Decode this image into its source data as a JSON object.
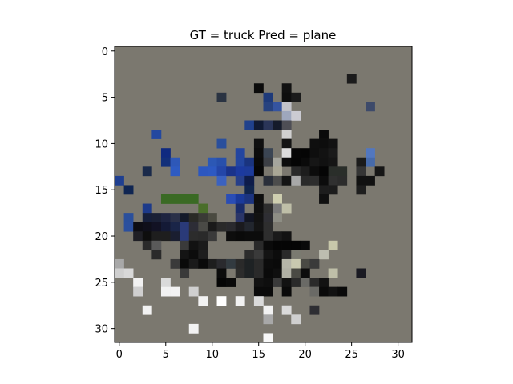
{
  "chart_data": {
    "type": "heatmap",
    "title": "GT = truck Pred = plane",
    "grid": false,
    "x_range": [
      -0.5,
      31.5
    ],
    "y_range": [
      -0.5,
      31.5
    ],
    "y_inverted": true,
    "x_ticks": [
      0,
      5,
      10,
      15,
      20,
      25,
      30
    ],
    "y_ticks": [
      0,
      5,
      10,
      15,
      20,
      25,
      30
    ],
    "background_color": "#7b786f",
    "pixels": [
      [
        25,
        3,
        "#1b1b1b"
      ],
      [
        15,
        4,
        "#0b0b0b"
      ],
      [
        18,
        4,
        "#111111"
      ],
      [
        11,
        5,
        "#2a3342"
      ],
      [
        16,
        5,
        "#1e3a7a"
      ],
      [
        18,
        5,
        "#0e0e0e"
      ],
      [
        19,
        5,
        "#1b1b1b"
      ],
      [
        16,
        6,
        "#27427f"
      ],
      [
        17,
        6,
        "#3554a0"
      ],
      [
        18,
        6,
        "#c3c3c9"
      ],
      [
        27,
        6,
        "#3d4a6a"
      ],
      [
        18,
        7,
        "#9ea7bd"
      ],
      [
        19,
        7,
        "#cbcbd2"
      ],
      [
        14,
        8,
        "#20418c"
      ],
      [
        15,
        8,
        "#101a33"
      ],
      [
        16,
        8,
        "#2a3558"
      ],
      [
        17,
        8,
        "#151b2b"
      ],
      [
        18,
        8,
        "#4e4e55"
      ],
      [
        4,
        9,
        "#2348a0"
      ],
      [
        18,
        9,
        "#d0d0d0"
      ],
      [
        22,
        9,
        "#0a0a0a"
      ],
      [
        11,
        10,
        "#2a4f9c"
      ],
      [
        15,
        10,
        "#101010"
      ],
      [
        18,
        10,
        "#141414"
      ],
      [
        21,
        10,
        "#0f0f0f"
      ],
      [
        22,
        10,
        "#0d0d0d"
      ],
      [
        23,
        10,
        "#121212"
      ],
      [
        5,
        11,
        "#0f2a80"
      ],
      [
        13,
        11,
        "#2345a0"
      ],
      [
        15,
        11,
        "#0c0c0c"
      ],
      [
        16,
        11,
        "#3b4553"
      ],
      [
        18,
        11,
        "#dcdcdc"
      ],
      [
        19,
        11,
        "#060606"
      ],
      [
        20,
        11,
        "#050505"
      ],
      [
        21,
        11,
        "#0e0e0e"
      ],
      [
        22,
        11,
        "#121212"
      ],
      [
        23,
        11,
        "#1a1a1a"
      ],
      [
        27,
        11,
        "#5277bf"
      ],
      [
        5,
        12,
        "#13307a"
      ],
      [
        6,
        12,
        "#2e58b8"
      ],
      [
        10,
        12,
        "#2c58b5"
      ],
      [
        11,
        12,
        "#2850ac"
      ],
      [
        13,
        12,
        "#2346a0"
      ],
      [
        14,
        12,
        "#1a347f"
      ],
      [
        15,
        12,
        "#090909"
      ],
      [
        16,
        12,
        "#3c3f45"
      ],
      [
        17,
        12,
        "#a5a59d"
      ],
      [
        18,
        12,
        "#0c0c0c"
      ],
      [
        19,
        12,
        "#050505"
      ],
      [
        20,
        12,
        "#0a0a0a"
      ],
      [
        21,
        12,
        "#161616"
      ],
      [
        22,
        12,
        "#111111"
      ],
      [
        23,
        12,
        "#151515"
      ],
      [
        26,
        12,
        "#1b1b1b"
      ],
      [
        27,
        12,
        "#466aaa"
      ],
      [
        3,
        13,
        "#1a2a4a"
      ],
      [
        6,
        13,
        "#2e5bc2"
      ],
      [
        9,
        13,
        "#2c57c0"
      ],
      [
        10,
        13,
        "#2d59c2"
      ],
      [
        11,
        13,
        "#2446a8"
      ],
      [
        12,
        13,
        "#1a338a"
      ],
      [
        13,
        13,
        "#1c3aa0"
      ],
      [
        14,
        13,
        "#1d3b9a"
      ],
      [
        15,
        13,
        "#060606"
      ],
      [
        17,
        13,
        "#aaa796"
      ],
      [
        19,
        13,
        "#2a2a2a"
      ],
      [
        20,
        13,
        "#1d1d1d"
      ],
      [
        21,
        13,
        "#0c0c0c"
      ],
      [
        22,
        13,
        "#050505"
      ],
      [
        23,
        13,
        "#2a2e2a"
      ],
      [
        24,
        13,
        "#2a2e2a"
      ],
      [
        26,
        13,
        "#353535"
      ],
      [
        28,
        13,
        "#161616"
      ],
      [
        0,
        14,
        "#1f3f90"
      ],
      [
        11,
        14,
        "#3b62c0"
      ],
      [
        13,
        14,
        "#263f8a"
      ],
      [
        14,
        14,
        "#0e1c4a"
      ],
      [
        16,
        14,
        "#2a2f3a"
      ],
      [
        17,
        14,
        "#4c4c4c"
      ],
      [
        18,
        14,
        "#141414"
      ],
      [
        19,
        14,
        "#a8a8a8"
      ],
      [
        20,
        14,
        "#2a2a2a"
      ],
      [
        21,
        14,
        "#2d2d2d"
      ],
      [
        22,
        14,
        "#0c0c0c"
      ],
      [
        23,
        14,
        "#303030"
      ],
      [
        24,
        14,
        "#2c2c2c"
      ],
      [
        26,
        14,
        "#111111"
      ],
      [
        27,
        14,
        "#111111"
      ],
      [
        1,
        15,
        "#0f2552"
      ],
      [
        14,
        15,
        "#10254e"
      ],
      [
        22,
        15,
        "#1d1d1d"
      ],
      [
        23,
        15,
        "#1c1c1c"
      ],
      [
        26,
        15,
        "#1e1e1e"
      ],
      [
        5,
        16,
        "#3a6a24"
      ],
      [
        6,
        16,
        "#3a6a24"
      ],
      [
        7,
        16,
        "#3a6a24"
      ],
      [
        8,
        16,
        "#3a6a24"
      ],
      [
        12,
        16,
        "#2a4db5"
      ],
      [
        13,
        16,
        "#1b3a9a"
      ],
      [
        14,
        16,
        "#1c347f"
      ],
      [
        15,
        16,
        "#0e0e0e"
      ],
      [
        17,
        16,
        "#cfcfb0"
      ],
      [
        22,
        16,
        "#101010"
      ],
      [
        3,
        17,
        "#1d3a8a"
      ],
      [
        9,
        17,
        "#4a6e2a"
      ],
      [
        13,
        17,
        "#1a2c6a"
      ],
      [
        15,
        17,
        "#0f0f0f"
      ],
      [
        16,
        17,
        "#2e2e2e"
      ],
      [
        17,
        17,
        "#7a7a7a"
      ],
      [
        18,
        17,
        "#bfbfa8"
      ],
      [
        1,
        18,
        "#2a4f9c"
      ],
      [
        3,
        18,
        "#161f3a"
      ],
      [
        4,
        18,
        "#1a2035"
      ],
      [
        5,
        18,
        "#1e2440"
      ],
      [
        6,
        18,
        "#2a3048"
      ],
      [
        7,
        18,
        "#141a2a"
      ],
      [
        8,
        18,
        "#2a2a26"
      ],
      [
        9,
        18,
        "#3a3a36"
      ],
      [
        10,
        18,
        "#4a4a40"
      ],
      [
        13,
        18,
        "#2a3568"
      ],
      [
        14,
        18,
        "#121522"
      ],
      [
        15,
        18,
        "#121212"
      ],
      [
        16,
        18,
        "#2e2e33"
      ],
      [
        17,
        18,
        "#8e8e85"
      ],
      [
        1,
        19,
        "#2b4f9e"
      ],
      [
        2,
        19,
        "#0d0d14"
      ],
      [
        3,
        19,
        "#0f0f1a"
      ],
      [
        4,
        19,
        "#121224"
      ],
      [
        5,
        19,
        "#141a36"
      ],
      [
        6,
        19,
        "#1a2548"
      ],
      [
        7,
        19,
        "#2a3a78"
      ],
      [
        8,
        19,
        "#2d2d36"
      ],
      [
        9,
        19,
        "#4a4a46"
      ],
      [
        10,
        19,
        "#1a1a1a"
      ],
      [
        11,
        19,
        "#2a2a2a"
      ],
      [
        12,
        19,
        "#2a2a2e"
      ],
      [
        13,
        19,
        "#1a1a1e"
      ],
      [
        14,
        19,
        "#22262e"
      ],
      [
        15,
        19,
        "#141414"
      ],
      [
        16,
        19,
        "#2e2e2e"
      ],
      [
        2,
        20,
        "#1f1f25"
      ],
      [
        3,
        20,
        "#0e0e0e"
      ],
      [
        4,
        20,
        "#1e1e1e"
      ],
      [
        5,
        20,
        "#1e1e1e"
      ],
      [
        6,
        20,
        "#1a1e30"
      ],
      [
        7,
        20,
        "#2a3a78"
      ],
      [
        8,
        20,
        "#2c2c2c"
      ],
      [
        9,
        20,
        "#2a2a2a"
      ],
      [
        10,
        20,
        "#3a3a3a"
      ],
      [
        12,
        20,
        "#0d0d0d"
      ],
      [
        13,
        20,
        "#0a0a0a"
      ],
      [
        14,
        20,
        "#0c0c0c"
      ],
      [
        15,
        20,
        "#0c0c0c"
      ],
      [
        16,
        20,
        "#2e2e2e"
      ],
      [
        17,
        20,
        "#1a1a1a"
      ],
      [
        18,
        20,
        "#121212"
      ],
      [
        3,
        21,
        "#2a2a2a"
      ],
      [
        4,
        21,
        "#5a5a5a"
      ],
      [
        7,
        21,
        "#3a3a3a"
      ],
      [
        8,
        21,
        "#121212"
      ],
      [
        9,
        21,
        "#1a1a1a"
      ],
      [
        15,
        21,
        "#2a2a2a"
      ],
      [
        16,
        21,
        "#0a0a0a"
      ],
      [
        17,
        21,
        "#050505"
      ],
      [
        18,
        21,
        "#050505"
      ],
      [
        19,
        21,
        "#050505"
      ],
      [
        20,
        21,
        "#0a0a0a"
      ],
      [
        23,
        21,
        "#c8c8aa"
      ],
      [
        4,
        22,
        "#2a2a2a"
      ],
      [
        7,
        22,
        "#141414"
      ],
      [
        8,
        22,
        "#0c0c0c"
      ],
      [
        9,
        22,
        "#1e1e1e"
      ],
      [
        14,
        22,
        "#2c2c2c"
      ],
      [
        15,
        22,
        "#3a3a3a"
      ],
      [
        16,
        22,
        "#141414"
      ],
      [
        17,
        22,
        "#0c0c0c"
      ],
      [
        18,
        22,
        "#2a2a2a"
      ],
      [
        19,
        22,
        "#7a7a70"
      ],
      [
        22,
        22,
        "#bdbdb0"
      ],
      [
        0,
        23,
        "#a8a8a8"
      ],
      [
        6,
        23,
        "#3a3a3a"
      ],
      [
        7,
        23,
        "#0a0a0a"
      ],
      [
        8,
        23,
        "#1a1a1a"
      ],
      [
        9,
        23,
        "#0a0a0a"
      ],
      [
        10,
        23,
        "#1e1e1e"
      ],
      [
        11,
        23,
        "#2a2a2e"
      ],
      [
        12,
        23,
        "#323a40"
      ],
      [
        13,
        23,
        "#2a2a2a"
      ],
      [
        14,
        23,
        "#1e2224"
      ],
      [
        15,
        23,
        "#2a2a2a"
      ],
      [
        16,
        23,
        "#0c0c0c"
      ],
      [
        17,
        23,
        "#0a0a0a"
      ],
      [
        18,
        23,
        "#b5b5a8"
      ],
      [
        19,
        23,
        "#c9c9b0"
      ],
      [
        20,
        23,
        "#4a4a44"
      ],
      [
        21,
        23,
        "#3a3a3a"
      ],
      [
        0,
        24,
        "#cfcfcf"
      ],
      [
        1,
        24,
        "#d8d8d8"
      ],
      [
        7,
        24,
        "#3a3a3a"
      ],
      [
        11,
        24,
        "#0c0c0c"
      ],
      [
        13,
        24,
        "#2c2c2c"
      ],
      [
        14,
        24,
        "#1e2224"
      ],
      [
        15,
        24,
        "#2a2a2a"
      ],
      [
        16,
        24,
        "#0a0a0a"
      ],
      [
        17,
        24,
        "#0f0f0f"
      ],
      [
        18,
        24,
        "#b0b0a4"
      ],
      [
        19,
        24,
        "#4a4a44"
      ],
      [
        20,
        24,
        "#0c0c0c"
      ],
      [
        23,
        24,
        "#bfbfa8"
      ],
      [
        26,
        24,
        "#1a1a22"
      ],
      [
        2,
        25,
        "#f2f2f2"
      ],
      [
        5,
        25,
        "#dadada"
      ],
      [
        11,
        25,
        "#050505"
      ],
      [
        12,
        25,
        "#090909"
      ],
      [
        15,
        25,
        "#121212"
      ],
      [
        16,
        25,
        "#0e0e0e"
      ],
      [
        17,
        25,
        "#3a3a3a"
      ],
      [
        18,
        25,
        "#121212"
      ],
      [
        19,
        25,
        "#2a2a2a"
      ],
      [
        20,
        25,
        "#6a6a66"
      ],
      [
        21,
        25,
        "#2a2a2a"
      ],
      [
        22,
        25,
        "#121212"
      ],
      [
        2,
        26,
        "#cfcfcf"
      ],
      [
        5,
        26,
        "#f2f2f2"
      ],
      [
        6,
        26,
        "#f2f2f2"
      ],
      [
        8,
        26,
        "#cfcfcf"
      ],
      [
        15,
        26,
        "#0a0a0a"
      ],
      [
        16,
        26,
        "#0a0a0a"
      ],
      [
        18,
        26,
        "#0a0a0a"
      ],
      [
        21,
        26,
        "#6a6a66"
      ],
      [
        22,
        26,
        "#0a0a0a"
      ],
      [
        23,
        26,
        "#121212"
      ],
      [
        24,
        26,
        "#0a0a0a"
      ],
      [
        9,
        27,
        "#f2f2f2"
      ],
      [
        11,
        27,
        "#ffffff"
      ],
      [
        13,
        27,
        "#f2f2f2"
      ],
      [
        15,
        27,
        "#dadada"
      ],
      [
        3,
        28,
        "#f2f2f2"
      ],
      [
        16,
        28,
        "#f2f2f2"
      ],
      [
        18,
        28,
        "#dadada"
      ],
      [
        21,
        28,
        "#2e2e33"
      ],
      [
        16,
        29,
        "#a8a8a8"
      ],
      [
        19,
        29,
        "#cfcfcf"
      ],
      [
        8,
        30,
        "#f2f2f2"
      ],
      [
        16,
        31,
        "#f7f7f7"
      ]
    ]
  }
}
